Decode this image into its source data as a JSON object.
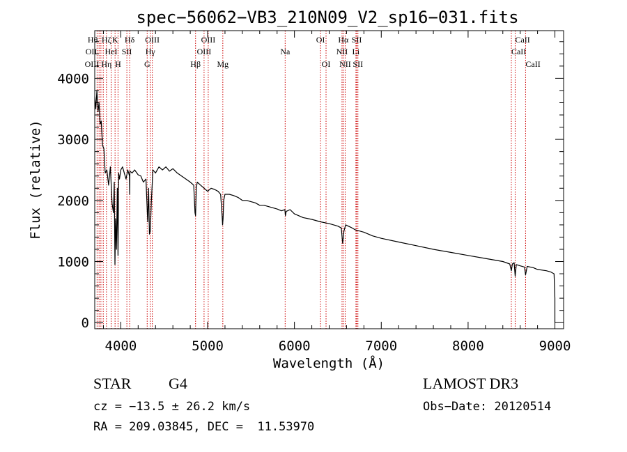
{
  "chart_data": {
    "type": "line",
    "title": "spec−56062−VB3_210N09_V2_sp16−031.fits",
    "xlabel": "Wavelength (Å)",
    "ylabel": "Flux (relative)",
    "xlim": [
      3700,
      9100
    ],
    "ylim": [
      -100,
      4780
    ],
    "x_ticks": [
      4000,
      5000,
      6000,
      7000,
      8000,
      9000
    ],
    "x_tick_labels": [
      "4000",
      "5000",
      "6000",
      "7000",
      "8000",
      "9000"
    ],
    "y_ticks": [
      0,
      1000,
      2000,
      3000,
      4000
    ],
    "y_tick_labels": [
      "0",
      "1000",
      "2000",
      "3000",
      "4000"
    ],
    "grid": false,
    "series": [
      {
        "name": "flux",
        "x": [
          3700,
          3712,
          3725,
          3738,
          3750,
          3762,
          3775,
          3790,
          3805,
          3820,
          3840,
          3860,
          3880,
          3900,
          3915,
          3925,
          3933,
          3940,
          3950,
          3960,
          3968,
          3975,
          3985,
          4000,
          4020,
          4040,
          4060,
          4080,
          4100,
          4102,
          4105,
          4130,
          4160,
          4200,
          4230,
          4260,
          4290,
          4310,
          4320,
          4330,
          4340,
          4352,
          4370,
          4400,
          4440,
          4480,
          4520,
          4560,
          4600,
          4650,
          4700,
          4750,
          4800,
          4840,
          4855,
          4861,
          4870,
          4880,
          4920,
          4960,
          5000,
          5040,
          5080,
          5120,
          5150,
          5167,
          5172,
          5178,
          5185,
          5200,
          5250,
          5300,
          5350,
          5400,
          5450,
          5500,
          5550,
          5600,
          5650,
          5700,
          5750,
          5800,
          5850,
          5890,
          5896,
          5905,
          5950,
          6000,
          6100,
          6200,
          6300,
          6400,
          6500,
          6540,
          6555,
          6563,
          6570,
          6590,
          6650,
          6700,
          6800,
          6900,
          7000,
          7200,
          7400,
          7600,
          7800,
          8000,
          8200,
          8400,
          8480,
          8498,
          8510,
          8530,
          8542,
          8555,
          8600,
          8650,
          8662,
          8680,
          8750,
          8800,
          8900,
          8950,
          8990,
          9000,
          9000
        ],
        "y": [
          3700,
          3500,
          3800,
          3450,
          3600,
          3250,
          3300,
          2900,
          2850,
          2450,
          2500,
          2250,
          2550,
          1950,
          1800,
          2300,
          950,
          1700,
          1200,
          2200,
          1100,
          2450,
          2350,
          2500,
          2550,
          2450,
          2350,
          2500,
          2400,
          2100,
          2480,
          2450,
          2500,
          2420,
          2400,
          2300,
          2350,
          1650,
          2200,
          1450,
          1500,
          2000,
          2500,
          2450,
          2550,
          2500,
          2550,
          2480,
          2520,
          2450,
          2400,
          2350,
          2300,
          2250,
          1800,
          1750,
          2200,
          2300,
          2250,
          2200,
          2150,
          2200,
          2180,
          2150,
          2100,
          1750,
          1600,
          1700,
          2000,
          2100,
          2100,
          2080,
          2050,
          2000,
          2000,
          1980,
          1960,
          1920,
          1920,
          1900,
          1880,
          1860,
          1830,
          1850,
          1750,
          1820,
          1850,
          1780,
          1720,
          1690,
          1650,
          1620,
          1580,
          1550,
          1300,
          1400,
          1500,
          1600,
          1560,
          1520,
          1480,
          1420,
          1380,
          1320,
          1260,
          1200,
          1150,
          1100,
          1050,
          1000,
          960,
          850,
          960,
          980,
          760,
          950,
          930,
          910,
          780,
          920,
          900,
          870,
          850,
          830,
          800,
          400,
          0
        ]
      }
    ],
    "line_labels": [
      {
        "name": "OII",
        "wavelength": 3727,
        "row": 2,
        "anchor": "end"
      },
      {
        "name": "Hθ",
        "wavelength": 3734,
        "row": 1,
        "anchor": "end"
      },
      {
        "name": "OIII",
        "wavelength": 3750,
        "row": 3,
        "anchor": "end"
      },
      {
        "name": "Hη",
        "wavelength": 3835,
        "row": 3,
        "anchor": "middle"
      },
      {
        "name": "Hζ",
        "wavelength": 3889,
        "row": 1,
        "anchor": "end"
      },
      {
        "name": "HeI",
        "wavelength": 3889,
        "row": 2,
        "anchor": "middle"
      },
      {
        "name": "K",
        "wavelength": 3934,
        "row": 1,
        "anchor": "middle"
      },
      {
        "name": "H",
        "wavelength": 3968,
        "row": 3,
        "anchor": "middle"
      },
      {
        "name": "SII",
        "wavelength": 4070,
        "row": 2,
        "anchor": "middle"
      },
      {
        "name": "Hδ",
        "wavelength": 4102,
        "row": 1,
        "anchor": "middle"
      },
      {
        "name": "OIII",
        "wavelength": 4363,
        "row": 1,
        "anchor": "middle"
      },
      {
        "name": "Hγ",
        "wavelength": 4340,
        "row": 2,
        "anchor": "middle"
      },
      {
        "name": "G",
        "wavelength": 4304,
        "row": 3,
        "anchor": "middle"
      },
      {
        "name": "Hβ",
        "wavelength": 4861,
        "row": 3,
        "anchor": "middle"
      },
      {
        "name": "OIII",
        "wavelength": 5007,
        "row": 1,
        "anchor": "middle"
      },
      {
        "name": "OIII",
        "wavelength": 4959,
        "row": 2,
        "anchor": "middle"
      },
      {
        "name": "Mg",
        "wavelength": 5175,
        "row": 3,
        "anchor": "middle"
      },
      {
        "name": "Na",
        "wavelength": 5893,
        "row": 2,
        "anchor": "middle"
      },
      {
        "name": "OI",
        "wavelength": 6300,
        "row": 1,
        "anchor": "middle"
      },
      {
        "name": "OI",
        "wavelength": 6364,
        "row": 3,
        "anchor": "middle"
      },
      {
        "name": "Hα",
        "wavelength": 6563,
        "row": 1,
        "anchor": "middle"
      },
      {
        "name": "NII",
        "wavelength": 6548,
        "row": 2,
        "anchor": "middle"
      },
      {
        "name": "NII",
        "wavelength": 6584,
        "row": 3,
        "anchor": "middle"
      },
      {
        "name": "SII",
        "wavelength": 6717,
        "row": 1,
        "anchor": "middle"
      },
      {
        "name": "Li",
        "wavelength": 6708,
        "row": 2,
        "anchor": "middle"
      },
      {
        "name": "SII",
        "wavelength": 6731,
        "row": 3,
        "anchor": "middle"
      },
      {
        "name": "CaII",
        "wavelength": 8542,
        "row": 1,
        "anchor": "start"
      },
      {
        "name": "CaII",
        "wavelength": 8498,
        "row": 2,
        "anchor": "start"
      },
      {
        "name": "CaII",
        "wavelength": 8662,
        "row": 3,
        "anchor": "start"
      }
    ],
    "line_marker_wavelengths": [
      3727,
      3750,
      3771,
      3798,
      3835,
      3889,
      3934,
      3968,
      4070,
      4102,
      4304,
      4340,
      4363,
      4861,
      4959,
      5007,
      5175,
      5893,
      6300,
      6364,
      6548,
      6563,
      6584,
      6708,
      6717,
      6731,
      8498,
      8542,
      8662
    ]
  },
  "info": {
    "object_class": "STAR",
    "subclass": "G4",
    "survey": "LAMOST DR3",
    "redshift": "cz = −13.5 ± 26.2 km/s",
    "obs_date": "Obs−Date: 20120514",
    "coordinates": "RA = 209.03845, DEC =  11.53970"
  },
  "colors": {
    "spectrum": "#000000",
    "line_marker": "#cc0000",
    "axes": "#000000"
  }
}
